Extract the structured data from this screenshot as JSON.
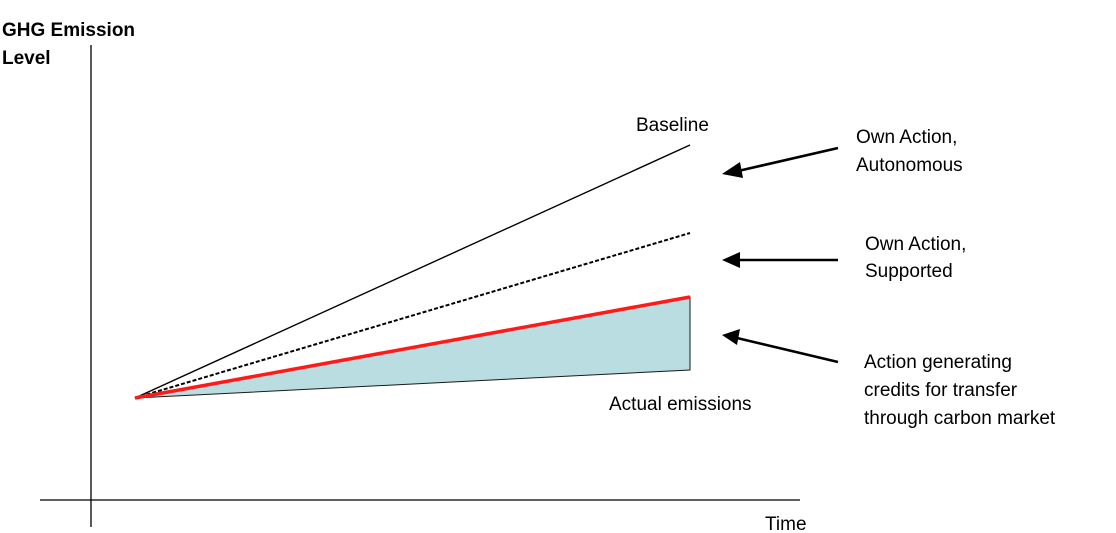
{
  "axes": {
    "y_label_line1": "GHG Emission",
    "y_label_line2": "Level",
    "x_label": "Time"
  },
  "lines": {
    "baseline_label": "Baseline",
    "actual_label": "Actual emissions"
  },
  "annotations": {
    "autonomous_line1": "Own Action,",
    "autonomous_line2": "Autonomous",
    "supported_line1": "Own Action,",
    "supported_line2": "Supported",
    "credits_line1": "Action generating",
    "credits_line2": "credits for transfer",
    "credits_line3": "through carbon market"
  },
  "colors": {
    "baseline": "#000000",
    "supported_dashed": "#000000",
    "credit_line": "#ff1a1a",
    "credit_area_fill": "#b9dde0",
    "axis": "#000000"
  }
}
